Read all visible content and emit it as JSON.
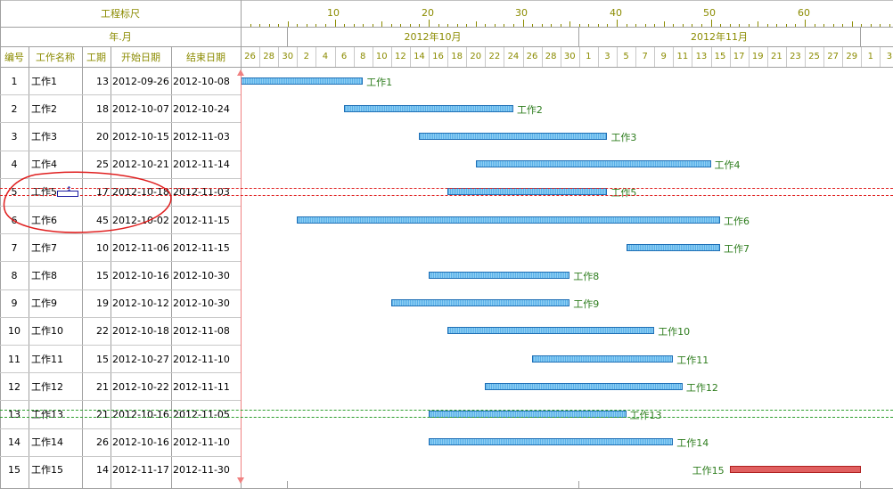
{
  "header": {
    "ruler_title": "工程标尺",
    "month_title": "年.月",
    "columns": [
      "编号",
      "工作名称",
      "工期",
      "开始日期",
      "结束日期"
    ],
    "ruler_numbers": [
      "10",
      "20",
      "30",
      "40",
      "50",
      "60"
    ],
    "months": [
      "2012年10月",
      "2012年11月"
    ],
    "days": [
      "26",
      "28",
      "30",
      "2",
      "4",
      "6",
      "8",
      "10",
      "12",
      "14",
      "16",
      "18",
      "20",
      "22",
      "24",
      "26",
      "28",
      "30",
      "1",
      "3",
      "5",
      "7",
      "9",
      "11",
      "13",
      "15",
      "17",
      "19",
      "21",
      "23",
      "25",
      "27",
      "29",
      "1",
      "3"
    ]
  },
  "rows": [
    {
      "id": "1",
      "name": "工作1",
      "dur": "13",
      "start": "2012-09-26",
      "end": "2012-10-08",
      "label": "工作1"
    },
    {
      "id": "2",
      "name": "工作2",
      "dur": "18",
      "start": "2012-10-07",
      "end": "2012-10-24",
      "label": "工作2"
    },
    {
      "id": "3",
      "name": "工作3",
      "dur": "20",
      "start": "2012-10-15",
      "end": "2012-11-03",
      "label": "工作3"
    },
    {
      "id": "4",
      "name": "工作4",
      "dur": "25",
      "start": "2012-10-21",
      "end": "2012-11-14",
      "label": "工作4"
    },
    {
      "id": "5",
      "name": "工作5",
      "dur": "17",
      "start": "2012-10-18",
      "end": "2012-11-03",
      "label": "工作5"
    },
    {
      "id": "6",
      "name": "工作6",
      "dur": "45",
      "start": "2012-10-02",
      "end": "2012-11-15",
      "label": "工作6"
    },
    {
      "id": "7",
      "name": "工作7",
      "dur": "10",
      "start": "2012-11-06",
      "end": "2012-11-15",
      "label": "工作7"
    },
    {
      "id": "8",
      "name": "工作8",
      "dur": "15",
      "start": "2012-10-16",
      "end": "2012-10-30",
      "label": "工作8"
    },
    {
      "id": "9",
      "name": "工作9",
      "dur": "19",
      "start": "2012-10-12",
      "end": "2012-10-30",
      "label": "工作9"
    },
    {
      "id": "10",
      "name": "工作10",
      "dur": "22",
      "start": "2012-10-18",
      "end": "2012-11-08",
      "label": "工作10"
    },
    {
      "id": "11",
      "name": "工作11",
      "dur": "15",
      "start": "2012-10-27",
      "end": "2012-11-10",
      "label": "工作11"
    },
    {
      "id": "12",
      "name": "工作12",
      "dur": "21",
      "start": "2012-10-22",
      "end": "2012-11-11",
      "label": "工作12"
    },
    {
      "id": "13",
      "name": "工作13",
      "dur": "21",
      "start": "2012-10-16",
      "end": "2012-11-05",
      "label": "工作13"
    },
    {
      "id": "14",
      "name": "工作14",
      "dur": "26",
      "start": "2012-10-16",
      "end": "2012-11-10",
      "label": "工作14"
    },
    {
      "id": "15",
      "name": "工作15",
      "dur": "14",
      "start": "2012-11-17",
      "end": "2012-11-30",
      "label": "工作15"
    }
  ],
  "colors": {
    "header_text": "#8b8b00",
    "bar_fill": "#5ab0e8",
    "bar_critical": "#e06060",
    "label_text": "#2e7d1e",
    "annotation": "#e02020",
    "row5_guide": "#e02020",
    "row13_guide": "#2e9e2e"
  },
  "annotations": {
    "circled_row": "5",
    "cursor_icon": "row-resize-cursor-icon"
  }
}
